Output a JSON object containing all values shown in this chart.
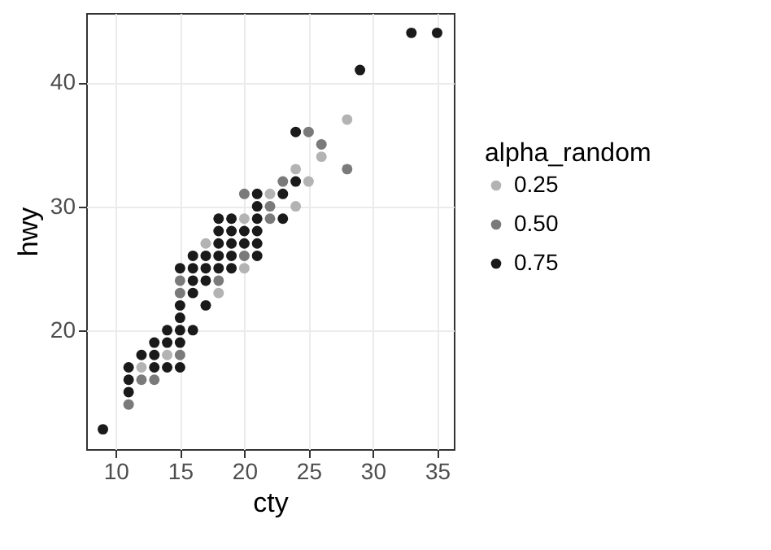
{
  "chart_data": {
    "type": "scatter",
    "xlabel": "cty",
    "ylabel": "hwy",
    "legend_title": "alpha_random",
    "xlim": [
      7.7,
      36.3
    ],
    "ylim": [
      10.4,
      45.6
    ],
    "xticks": [
      10,
      15,
      20,
      25,
      30,
      35
    ],
    "yticks": [
      20,
      30,
      40
    ],
    "grid": true,
    "legend": "right",
    "marker": "circle",
    "series": [
      {
        "name": "0.25",
        "color": "#b3b3b3",
        "x": [
          12,
          14,
          17,
          18,
          20,
          20,
          22,
          24,
          25,
          24,
          26,
          28
        ],
        "values": [
          17,
          18,
          27,
          23,
          25,
          29,
          31,
          30,
          32,
          33,
          34,
          37
        ]
      },
      {
        "name": "0.50",
        "color": "#7a7a7a",
        "x": [
          11,
          12,
          13,
          15,
          15,
          15,
          18,
          20,
          20,
          22,
          22,
          23,
          25,
          26,
          28
        ],
        "values": [
          14,
          16,
          16,
          18,
          23,
          24,
          24,
          26,
          31,
          30,
          29,
          32,
          36,
          35,
          33
        ]
      },
      {
        "name": "0.75",
        "color": "#1a1a1a",
        "x": [
          9,
          11,
          11,
          11,
          12,
          13,
          13,
          13,
          14,
          14,
          14,
          15,
          15,
          15,
          15,
          15,
          15,
          16,
          16,
          16,
          16,
          16,
          17,
          17,
          17,
          17,
          18,
          18,
          18,
          18,
          18,
          19,
          19,
          19,
          19,
          19,
          20,
          20,
          21,
          21,
          21,
          21,
          21,
          21,
          23,
          23,
          24,
          24,
          29,
          33,
          35
        ],
        "values": [
          12,
          15,
          16,
          17,
          18,
          17,
          18,
          19,
          17,
          19,
          20,
          17,
          19,
          20,
          21,
          22,
          25,
          20,
          23,
          24,
          25,
          26,
          22,
          24,
          25,
          26,
          25,
          26,
          27,
          28,
          29,
          25,
          26,
          27,
          28,
          29,
          27,
          28,
          26,
          27,
          28,
          29,
          30,
          31,
          29,
          31,
          32,
          36,
          41,
          44,
          44
        ]
      }
    ]
  }
}
